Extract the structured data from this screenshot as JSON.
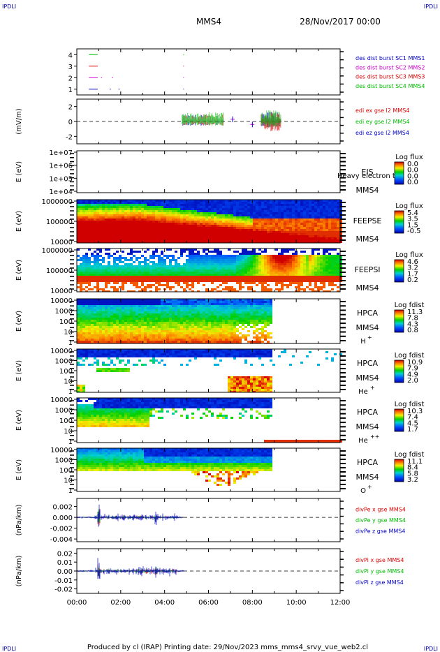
{
  "corner_label": "IPDLI",
  "header": {
    "spacecraft": "MMS4",
    "date": "28/Nov/2017 00:00"
  },
  "footer": {
    "text": "Produced by cl (IRAP)   Printing date: 29/Nov/2023   mms_mms4_srvy_vue_web2.cl"
  },
  "time_axis": {
    "start_h": 0,
    "end_h": 12,
    "tick_labels": [
      "00:00",
      "02:00",
      "04:00",
      "06:00",
      "08:00",
      "10:00",
      "12:00"
    ]
  },
  "colors": {
    "blue": "#0000cc",
    "magenta": "#cc00cc",
    "red": "#dd0000",
    "green": "#00bb00"
  },
  "chart_data": [
    {
      "type": "line",
      "id": "burst",
      "yticks": [
        "4",
        "3",
        "2",
        "1"
      ],
      "ylim": [
        0.5,
        4.5
      ],
      "legend": [
        {
          "text": "des dist burst SC1 MMS1",
          "color": "#0000cc"
        },
        {
          "text": "des dist burst SC2 MMS2",
          "color": "#cc00cc"
        },
        {
          "text": "des dist burst SC3 MMS3",
          "color": "#dd0000"
        },
        {
          "text": "des dist burst SC4 MMS4",
          "color": "#00bb00"
        }
      ],
      "segments": [
        {
          "level": 4,
          "color": "#00bb00",
          "ranges": [
            [
              0.55,
              0.95
            ],
            [
              4.85,
              4.88
            ]
          ]
        },
        {
          "level": 3,
          "color": "#dd0000",
          "ranges": [
            [
              0.55,
              0.95
            ],
            [
              4.85,
              4.88
            ]
          ]
        },
        {
          "level": 2,
          "color": "#cc00cc",
          "ranges": [
            [
              0.55,
              0.95
            ],
            [
              1.1,
              1.15
            ],
            [
              1.6,
              1.65
            ],
            [
              4.85,
              4.88
            ]
          ]
        },
        {
          "level": 1,
          "color": "#0000cc",
          "ranges": [
            [
              0.55,
              0.95
            ],
            [
              1.5,
              1.55
            ],
            [
              1.9,
              1.95
            ],
            [
              4.85,
              4.88
            ]
          ]
        }
      ]
    },
    {
      "type": "line",
      "id": "edi",
      "ylabel": "(mV/m)",
      "yticks": [
        "2",
        "0",
        "-2"
      ],
      "ylim": [
        -3,
        3
      ],
      "legend": [
        {
          "text": "edi ex gse l2 MMS4",
          "color": "#dd0000"
        },
        {
          "text": "edi ey gse l2 MMS4",
          "color": "#00bb00"
        },
        {
          "text": "edi ez gse l2 MMS4",
          "color": "#0000cc"
        }
      ],
      "active_ranges": [
        [
          4.8,
          6.7
        ],
        [
          8.4,
          9.3
        ]
      ],
      "markers": [
        [
          7.1,
          0.3
        ],
        [
          8.0,
          -0.4
        ]
      ]
    },
    {
      "type": "heatmap",
      "id": "eis",
      "ylabel": "E (eV)",
      "yticks": [
        "1e+07",
        "1e+06",
        "1e+05",
        "1e+04"
      ],
      "inst": [
        "EIS",
        "MMS4"
      ],
      "overlay": "Heavy electron tof",
      "cb_title": "Log flux",
      "cb_values": [
        "0.0",
        "0.0",
        "0.0",
        "0.0"
      ],
      "scheme": "none"
    },
    {
      "type": "heatmap",
      "id": "feepse",
      "ylabel": "E (eV)",
      "yticks": [
        "1000000",
        "100000",
        "10000"
      ],
      "inst": [
        "FEEPSE",
        "MMS4"
      ],
      "cb_title": "Log flux",
      "cb_values": [
        "5.4",
        "3.5",
        "1.5",
        "-0.5"
      ],
      "scheme": "feepse"
    },
    {
      "type": "heatmap",
      "id": "feepsi",
      "ylabel": "E (eV)",
      "yticks": [
        "1000000",
        "100000",
        "10000"
      ],
      "inst": [
        "FEEPSI",
        "MMS4"
      ],
      "cb_title": "Log flux",
      "cb_values": [
        "4.6",
        "3.2",
        "1.7",
        "0.2"
      ],
      "scheme": "feepsi"
    },
    {
      "type": "heatmap",
      "id": "hpca_h",
      "ylabel": "E (eV)",
      "yticks": [
        "10000",
        "1000",
        "100",
        "10",
        "1"
      ],
      "inst": [
        "HPCA",
        "MMS4"
      ],
      "species": "H",
      "species_sup": "+",
      "cb_title": "Log fdist",
      "cb_values": [
        "11.3",
        "7.8",
        "4.3",
        "0.8"
      ],
      "scheme": "h"
    },
    {
      "type": "heatmap",
      "id": "hpca_he",
      "ylabel": "E (eV)",
      "yticks": [
        "10000",
        "1000",
        "100",
        "10",
        "1"
      ],
      "inst": [
        "HPCA",
        "MMS4"
      ],
      "species": "He",
      "species_sup": "+",
      "cb_title": "Log fdist",
      "cb_values": [
        "10.9",
        "7.9",
        "4.9",
        "2.0"
      ],
      "scheme": "he"
    },
    {
      "type": "heatmap",
      "id": "hpca_hepp",
      "ylabel": "E (eV)",
      "yticks": [
        "10000",
        "1000",
        "100",
        "10",
        "1"
      ],
      "inst": [
        "HPCA",
        "MMS4"
      ],
      "species": "He",
      "species_sup": "++",
      "cb_title": "Log fdist",
      "cb_values": [
        "10.3",
        "7.4",
        "4.5",
        "1.7"
      ],
      "scheme": "hepp"
    },
    {
      "type": "heatmap",
      "id": "hpca_o",
      "ylabel": "E (eV)",
      "yticks": [
        "10000",
        "1000",
        "100",
        "10",
        "1"
      ],
      "inst": [
        "HPCA",
        "MMS4"
      ],
      "species": "O",
      "species_sup": "+",
      "cb_title": "Log fdist",
      "cb_values": [
        "11.1",
        "8.4",
        "5.8",
        "3.2"
      ],
      "scheme": "o"
    },
    {
      "type": "line",
      "id": "divpe",
      "ylabel": "(nPa/km)",
      "yticks": [
        "0.002",
        "0.000",
        "-0.002",
        "-0.004"
      ],
      "yvals": [
        0.002,
        0.0,
        -0.002,
        -0.004
      ],
      "ylim": [
        -0.0045,
        0.0035
      ],
      "legend": [
        {
          "text": "divPe x gse MMS4",
          "color": "#dd0000"
        },
        {
          "text": "divPe y gse MMS4",
          "color": "#00bb00"
        },
        {
          "text": "divPe z gse MMS4",
          "color": "#0000cc"
        }
      ],
      "active_ranges": [
        [
          0.0,
          4.9
        ]
      ]
    },
    {
      "type": "line",
      "id": "divpi",
      "ylabel": "(nPa/km)",
      "yticks": [
        "0.02",
        "0.01",
        "0.00",
        "-0.01",
        "-0.02"
      ],
      "yvals": [
        0.02,
        0.01,
        0.0,
        -0.01,
        -0.02
      ],
      "ylim": [
        -0.025,
        0.025
      ],
      "legend": [
        {
          "text": "divPi x gse MMS4",
          "color": "#dd0000"
        },
        {
          "text": "divPi y gse MMS4",
          "color": "#00bb00"
        },
        {
          "text": "divPi z gse MMS4",
          "color": "#0000cc"
        }
      ],
      "active_ranges": [
        [
          0.0,
          4.9
        ]
      ]
    }
  ]
}
